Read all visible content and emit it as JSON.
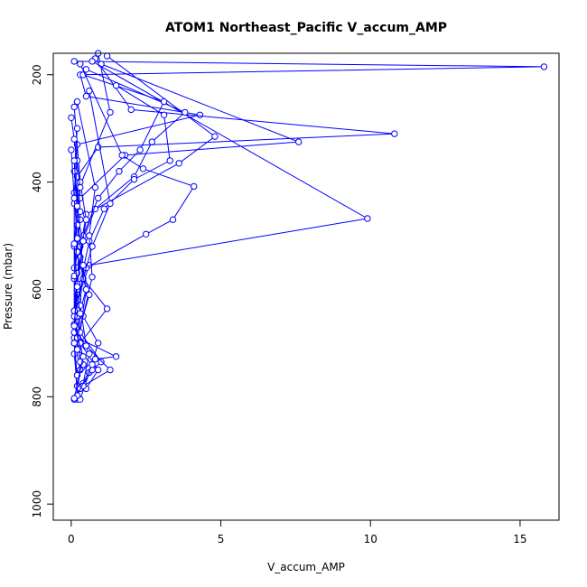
{
  "chart_data": {
    "type": "line",
    "title": "ATOM1 Northeast_Pacific V_accum_AMP",
    "xlabel": "V_accum_AMP",
    "ylabel": "Pressure (mbar)",
    "xlim": [
      -0.6,
      16.3
    ],
    "ylim": [
      1030,
      160
    ],
    "y_reversed": true,
    "xticks": [
      0,
      5,
      10,
      15
    ],
    "yticks": [
      200,
      400,
      600,
      800,
      1000
    ],
    "series_color": "#0000FF",
    "marker": "open-circle",
    "series": [
      {
        "values": [
          [
            0.9,
            160
          ],
          [
            1.3,
            270
          ],
          [
            0.2,
            420
          ],
          [
            0.3,
            540
          ],
          [
            0.5,
            600
          ],
          [
            0.2,
            660
          ],
          [
            0.1,
            720
          ],
          [
            0.2,
            780
          ]
        ]
      },
      {
        "values": [
          [
            0.1,
            175
          ],
          [
            15.8,
            185
          ],
          [
            0.3,
            200
          ],
          [
            0.5,
            240
          ],
          [
            4.3,
            275
          ],
          [
            0.2,
            330
          ],
          [
            0.1,
            420
          ],
          [
            0.1,
            560
          ],
          [
            0.2,
            650
          ],
          [
            0.4,
            740
          ]
        ]
      },
      {
        "values": [
          [
            0.8,
            170
          ],
          [
            2.0,
            265
          ],
          [
            10.8,
            310
          ],
          [
            0.9,
            335
          ],
          [
            0.2,
            390
          ],
          [
            0.3,
            470
          ],
          [
            0.1,
            580
          ],
          [
            0.1,
            690
          ],
          [
            0.3,
            750
          ]
        ]
      },
      {
        "values": [
          [
            1.0,
            180
          ],
          [
            7.6,
            325
          ],
          [
            1.8,
            350
          ],
          [
            0.3,
            430
          ],
          [
            0.1,
            520
          ],
          [
            0.2,
            610
          ],
          [
            0.1,
            700
          ],
          [
            0.2,
            800
          ]
        ]
      },
      {
        "values": [
          [
            1.2,
            165
          ],
          [
            4.8,
            315
          ],
          [
            3.6,
            365
          ],
          [
            0.5,
            460
          ],
          [
            0.2,
            560
          ],
          [
            0.1,
            640
          ],
          [
            0.3,
            735
          ],
          [
            0.2,
            805
          ]
        ]
      },
      {
        "values": [
          [
            0.7,
            175
          ],
          [
            9.9,
            468
          ],
          [
            0.6,
            555
          ],
          [
            0.2,
            620
          ],
          [
            0.1,
            700
          ],
          [
            0.2,
            760
          ]
        ]
      },
      {
        "values": [
          [
            0.5,
            190
          ],
          [
            3.8,
            270
          ],
          [
            2.7,
            325
          ],
          [
            2.1,
            390
          ],
          [
            0.8,
            450
          ],
          [
            0.3,
            520
          ],
          [
            0.2,
            600
          ],
          [
            0.1,
            680
          ]
        ]
      },
      {
        "values": [
          [
            0.4,
            200
          ],
          [
            3.1,
            250
          ],
          [
            2.3,
            340
          ],
          [
            1.6,
            380
          ],
          [
            0.9,
            430
          ],
          [
            0.4,
            500
          ],
          [
            0.2,
            570
          ],
          [
            0.1,
            650
          ]
        ]
      },
      {
        "values": [
          [
            1.5,
            220
          ],
          [
            3.1,
            275
          ],
          [
            3.3,
            360
          ],
          [
            2.1,
            395
          ],
          [
            1.1,
            450
          ],
          [
            0.6,
            510
          ],
          [
            0.3,
            590
          ]
        ]
      },
      {
        "values": [
          [
            0.3,
            180
          ],
          [
            1.7,
            350
          ],
          [
            2.4,
            375
          ],
          [
            4.1,
            408
          ],
          [
            3.4,
            470
          ],
          [
            2.5,
            497
          ],
          [
            0.5,
            560
          ],
          [
            0.1,
            640
          ]
        ]
      },
      {
        "values": [
          [
            0.6,
            230
          ],
          [
            1.3,
            440
          ],
          [
            0.7,
            520
          ],
          [
            0.4,
            580
          ],
          [
            1.2,
            636
          ],
          [
            0.3,
            700
          ],
          [
            0.9,
            750
          ],
          [
            0.5,
            785
          ]
        ]
      },
      {
        "values": [
          [
            0.2,
            250
          ],
          [
            0.8,
            410
          ],
          [
            0.6,
            500
          ],
          [
            0.7,
            577
          ],
          [
            0.4,
            650
          ],
          [
            0.9,
            700
          ],
          [
            0.6,
            755
          ],
          [
            0.3,
            805
          ]
        ]
      },
      {
        "values": [
          [
            0.1,
            260
          ],
          [
            0.3,
            400
          ],
          [
            0.5,
            470
          ],
          [
            0.3,
            540
          ],
          [
            0.6,
            610
          ],
          [
            0.2,
            690
          ],
          [
            1.5,
            725
          ],
          [
            0.8,
            730
          ],
          [
            0.2,
            760
          ]
        ]
      },
      {
        "values": [
          [
            0.0,
            280
          ],
          [
            0.2,
            360
          ],
          [
            0.1,
            440
          ],
          [
            0.4,
            510
          ],
          [
            0.2,
            590
          ],
          [
            0.1,
            665
          ],
          [
            0.6,
            720
          ],
          [
            0.4,
            775
          ],
          [
            0.1,
            805
          ]
        ]
      },
      {
        "values": [
          [
            0.2,
            300
          ],
          [
            0.1,
            380
          ],
          [
            0.3,
            455
          ],
          [
            0.2,
            530
          ],
          [
            0.5,
            600
          ],
          [
            0.3,
            680
          ],
          [
            1.0,
            735
          ],
          [
            0.7,
            750
          ],
          [
            0.3,
            785
          ]
        ]
      },
      {
        "values": [
          [
            0.1,
            320
          ],
          [
            0.3,
            410
          ],
          [
            0.2,
            480
          ],
          [
            0.4,
            555
          ],
          [
            0.3,
            630
          ],
          [
            0.5,
            705
          ],
          [
            1.3,
            750
          ],
          [
            0.4,
            780
          ]
        ]
      },
      {
        "values": [
          [
            0.0,
            340
          ],
          [
            0.1,
            430
          ],
          [
            0.2,
            505
          ],
          [
            0.1,
            575
          ],
          [
            0.3,
            645
          ],
          [
            0.2,
            712
          ],
          [
            0.7,
            740
          ],
          [
            0.2,
            798
          ]
        ]
      },
      {
        "values": [
          [
            0.1,
            360
          ],
          [
            0.2,
            445
          ],
          [
            0.1,
            515
          ],
          [
            0.2,
            595
          ],
          [
            0.1,
            668
          ],
          [
            0.4,
            725
          ],
          [
            0.1,
            803
          ]
        ]
      }
    ]
  }
}
